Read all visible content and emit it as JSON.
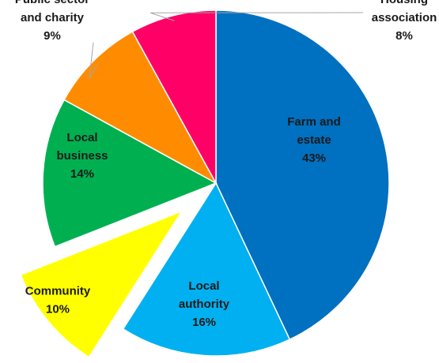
{
  "chart_data": {
    "type": "pie",
    "title": "",
    "slices": [
      {
        "label_lines": [
          "Farm and",
          "estate"
        ],
        "value": 43,
        "value_label": "43%",
        "color": "#0070C0"
      },
      {
        "label_lines": [
          "Local",
          "authority"
        ],
        "value": 16,
        "value_label": "16%",
        "color": "#00B0F0"
      },
      {
        "label_lines": [
          "Community"
        ],
        "value": 10,
        "value_label": "10%",
        "color": "#FFFF00",
        "exploded": true
      },
      {
        "label_lines": [
          "Local",
          "business"
        ],
        "value": 14,
        "value_label": "14%",
        "color": "#00B050"
      },
      {
        "label_lines": [
          "Public sector",
          "and charity"
        ],
        "value": 9,
        "value_label": "9%",
        "color": "#FF8C00"
      },
      {
        "label_lines": [
          "Housing",
          "association"
        ],
        "value": 8,
        "value_label": "8%",
        "color": "#FF0066"
      }
    ],
    "start_angle": "12 o'clock",
    "direction": "clockwise",
    "legend": "none"
  }
}
